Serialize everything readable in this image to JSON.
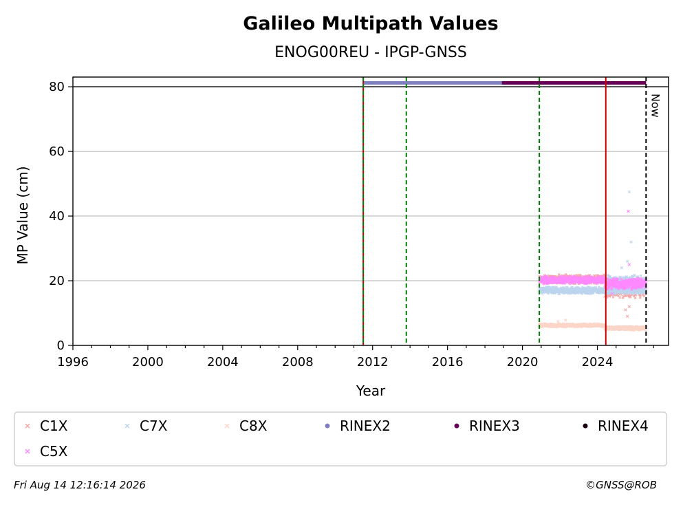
{
  "chart_data": {
    "type": "scatter",
    "title": "Galileo Multipath Values",
    "subtitle": "ENOG00REU - IPGP-GNSS",
    "xlabel": "Year",
    "ylabel": "MP Value (cm)",
    "xlim": [
      1996,
      2027.8
    ],
    "ylim": [
      0,
      83
    ],
    "x_ticks": [
      "1996",
      "2000",
      "2004",
      "2008",
      "2012",
      "2016",
      "2020",
      "2024"
    ],
    "y_ticks": [
      "0",
      "20",
      "40",
      "60",
      "80"
    ],
    "grid": "horizontal",
    "now_label": "Now",
    "reference_line_y": 80,
    "vertical_lines": [
      {
        "x": 2011.5,
        "style": "red-solid"
      },
      {
        "x": 2011.5,
        "style": "green-dashed"
      },
      {
        "x": 2013.8,
        "style": "green-dashed"
      },
      {
        "x": 2020.9,
        "style": "green-dashed"
      },
      {
        "x": 2024.45,
        "style": "red-solid"
      },
      {
        "x": 2026.6,
        "style": "black-dashed"
      }
    ],
    "series": [
      {
        "name": "C1X",
        "color": "#f4a6a6",
        "marker": "x",
        "segments": [
          {
            "x0": 2020.9,
            "x1": 2024.4,
            "center": 20.5,
            "spread": 1.5
          },
          {
            "x0": 2024.4,
            "x1": 2026.6,
            "center": 17.5,
            "spread": 3
          }
        ],
        "outliers": [
          [
            2025.6,
            9
          ],
          [
            2025.7,
            12
          ],
          [
            2025.75,
            15
          ],
          [
            2025.5,
            11
          ]
        ]
      },
      {
        "name": "C7X",
        "color": "#bcd4ee",
        "marker": "x",
        "segments": [
          {
            "x0": 2020.9,
            "x1": 2026.6,
            "center": 17,
            "spread": 1.2
          },
          {
            "x0": 2024.4,
            "x1": 2026.6,
            "center": 19.5,
            "spread": 2.5
          }
        ],
        "outliers": [
          [
            2025.7,
            47.5
          ],
          [
            2025.8,
            32
          ],
          [
            2025.3,
            24
          ],
          [
            2025.6,
            26
          ]
        ]
      },
      {
        "name": "C8X",
        "color": "#fbd5c8",
        "marker": "x",
        "segments": [
          {
            "x0": 2020.9,
            "x1": 2024.4,
            "center": 6.2,
            "spread": 0.6
          },
          {
            "x0": 2024.4,
            "x1": 2026.6,
            "center": 5.3,
            "spread": 0.7
          }
        ],
        "outliers": [
          [
            2022.3,
            7.8
          ],
          [
            2021.9,
            7.4
          ]
        ]
      },
      {
        "name": "C5X",
        "color": "#ff88ff",
        "marker": "x",
        "segments": [
          {
            "x0": 2020.9,
            "x1": 2024.4,
            "center": 20.2,
            "spread": 1.3
          },
          {
            "x0": 2024.4,
            "x1": 2026.6,
            "center": 19,
            "spread": 2
          }
        ],
        "outliers": [
          [
            2025.65,
            41.5
          ],
          [
            2025.7,
            25
          ],
          [
            2024.8,
            16
          ]
        ]
      }
    ],
    "rinex_bars": [
      {
        "name": "RINEX2",
        "color": "#8080c0",
        "x0": 2011.5,
        "x1": 2018.9,
        "y": 81.2
      },
      {
        "name": "RINEX3",
        "color": "#660055",
        "x0": 2018.9,
        "x1": 2026.6,
        "y": 81.2
      },
      {
        "name": "RINEX4",
        "color": "#1a0010",
        "x0": null,
        "x1": null,
        "y": 81.2
      }
    ],
    "legend": {
      "placement": "bottom",
      "entries": [
        {
          "label": "C1X",
          "color": "#f4a6a6",
          "marker": "x"
        },
        {
          "label": "C7X",
          "color": "#bcd4ee",
          "marker": "x"
        },
        {
          "label": "C8X",
          "color": "#fbd5c8",
          "marker": "x"
        },
        {
          "label": "RINEX2",
          "color": "#8080c0",
          "marker": "dot"
        },
        {
          "label": "RINEX3",
          "color": "#660055",
          "marker": "dot"
        },
        {
          "label": "RINEX4",
          "color": "#1a0010",
          "marker": "dot"
        },
        {
          "label": "C5X",
          "color": "#ff88ff",
          "marker": "x"
        }
      ]
    }
  },
  "footer": {
    "timestamp": "Fri Aug 14 12:16:14 2026",
    "credit": "©GNSS@ROB"
  }
}
